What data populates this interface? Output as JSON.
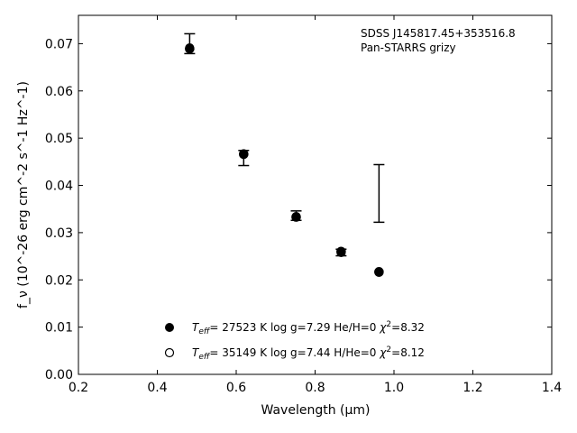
{
  "chart_data": {
    "type": "scatter",
    "xlabel": "Wavelength (μm)",
    "ylabel": "f_ν (10^-26 erg cm^-2 s^-1 Hz^-1)",
    "xlim": [
      0.2,
      1.4
    ],
    "ylim": [
      0.0,
      0.076
    ],
    "xticks": [
      "0.2",
      "0.4",
      "0.6",
      "0.8",
      "1.0",
      "1.2",
      "1.4"
    ],
    "yticks": [
      "0.00",
      "0.01",
      "0.02",
      "0.03",
      "0.04",
      "0.05",
      "0.06",
      "0.07"
    ],
    "annotations": [
      "SDSS J145817.45+353516.8",
      "Pan-STARRS grizy"
    ],
    "legend": {
      "placement": "bottom-center",
      "entries": [
        {
          "marker": "filled-circle",
          "teff": "27523",
          "logg": "7.29",
          "ratio": "He/H=0",
          "chi2": "8.32"
        },
        {
          "marker": "open-circle",
          "teff": "35149",
          "logg": "7.44",
          "ratio": "H/He=0",
          "chi2": "8.12"
        }
      ]
    },
    "observed": [
      {
        "x": 0.482,
        "y": 0.07,
        "yerr_low": 0.0021,
        "yerr_high": 0.0021
      },
      {
        "x": 0.619,
        "y": 0.0458,
        "yerr_low": 0.0016,
        "yerr_high": 0.0016
      },
      {
        "x": 0.752,
        "y": 0.0336,
        "yerr_low": 0.001,
        "yerr_high": 0.001
      },
      {
        "x": 0.866,
        "y": 0.0258,
        "yerr_low": 0.0007,
        "yerr_high": 0.0007
      },
      {
        "x": 0.962,
        "y": 0.0383,
        "yerr_low": 0.0061,
        "yerr_high": 0.0061
      }
    ],
    "series": [
      {
        "marker": "filled",
        "x": [
          0.482,
          0.619,
          0.752,
          0.866,
          0.962
        ],
        "y": [
          0.0689,
          0.0466,
          0.0333,
          0.026,
          0.0217
        ]
      },
      {
        "marker": "open",
        "x": [
          0.482,
          0.619,
          0.752,
          0.866,
          0.962
        ],
        "y": [
          0.0691,
          0.0467,
          0.0334,
          0.0258,
          0.0216
        ]
      }
    ],
    "colors": {
      "marker": "#000000",
      "background": "#ffffff"
    }
  }
}
